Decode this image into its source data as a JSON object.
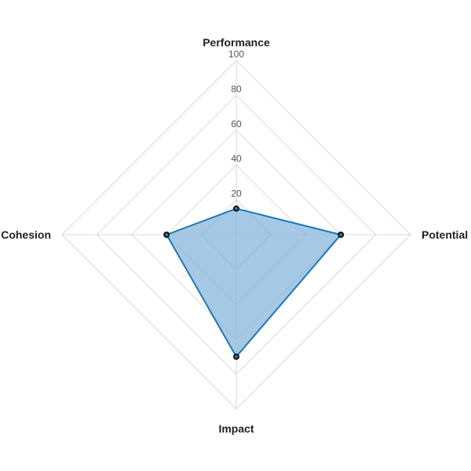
{
  "chart_data": {
    "type": "radar",
    "axes": [
      "Performance",
      "Potential",
      "Impact",
      "Cohesion"
    ],
    "rlim": [
      0,
      100
    ],
    "ticks": [
      20,
      40,
      60,
      80,
      100
    ],
    "grid": true,
    "series": [
      {
        "values": [
          15,
          60,
          70,
          40
        ],
        "color": "#1f77b4",
        "fill": "#7fb2d9"
      }
    ]
  }
}
